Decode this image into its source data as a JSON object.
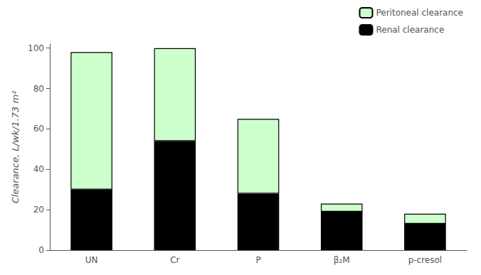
{
  "chart_data": {
    "type": "bar",
    "categories": [
      "UN",
      "Cr",
      "P",
      "β₂M",
      "p-cresol"
    ],
    "series": [
      {
        "name": "Renal clearance",
        "color": "#000000",
        "values": [
          30,
          54,
          28,
          19,
          13
        ]
      },
      {
        "name": "Peritoneal clearance",
        "color": "#ccffcc",
        "values": [
          68,
          46,
          37,
          4,
          5
        ]
      }
    ],
    "ylabel": "Clearance, L/wk/1.73 m²",
    "ylim": [
      0,
      102
    ],
    "yticks": [
      0,
      20,
      40,
      60,
      80,
      100
    ],
    "stacked": true,
    "grid": false,
    "legend": "upper right"
  }
}
